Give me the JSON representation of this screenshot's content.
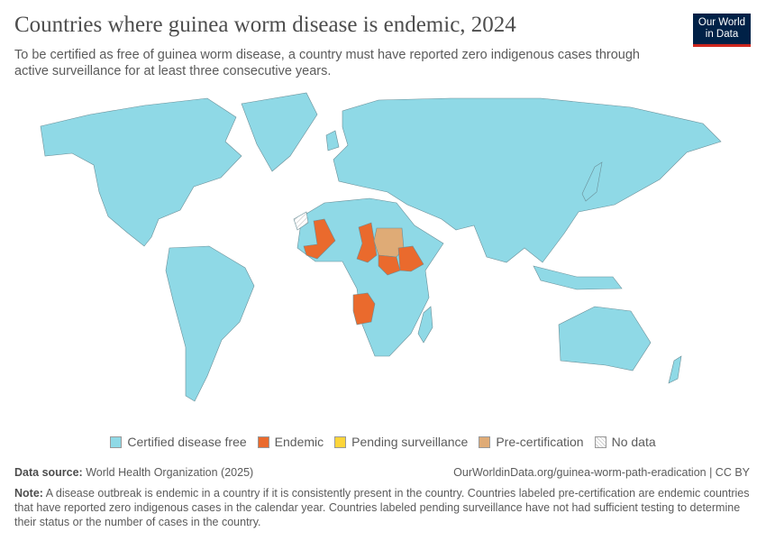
{
  "header": {
    "title": "Countries where guinea worm disease is endemic, 2024",
    "subtitle": "To be certified as free of guinea worm disease, a country must have reported zero indigenous cases through active surveillance for at least three consecutive years.",
    "logo": "Our World in Data"
  },
  "colors": {
    "certified": "#8fd9e6",
    "endemic": "#ea6a2d",
    "pending": "#fdd53a",
    "precert": "#dfab76",
    "nodata": "#f2f2f2",
    "border": "#6a8f98"
  },
  "legend": [
    {
      "label": "Certified disease free",
      "color": "#8fd9e6"
    },
    {
      "label": "Endemic",
      "color": "#ea6a2d"
    },
    {
      "label": "Pending surveillance",
      "color": "#fdd53a"
    },
    {
      "label": "Pre-certification",
      "color": "#dfab76"
    },
    {
      "label": "No data",
      "color": "hatched"
    }
  ],
  "countries": [
    {
      "name": "Mali",
      "status": "Endemic"
    },
    {
      "name": "Chad",
      "status": "Endemic"
    },
    {
      "name": "South Sudan",
      "status": "Endemic"
    },
    {
      "name": "Ethiopia",
      "status": "Endemic"
    },
    {
      "name": "Angola",
      "status": "Endemic"
    },
    {
      "name": "Sudan",
      "status": "Pre-certification"
    },
    {
      "name": "Western Sahara",
      "status": "No data"
    }
  ],
  "footer": {
    "source_label": "Data source:",
    "source": "World Health Organization (2025)",
    "url": "OurWorldinData.org/guinea-worm-path-eradication | CC BY",
    "note_label": "Note:",
    "note": "A disease outbreak is endemic in a country if it is consistently present in the country. Countries labeled pre-certification are endemic countries that have reported zero indigenous cases in the calendar year. Countries labeled pending surveillance have not had sufficient testing to determine their status or the number of cases in the country."
  }
}
